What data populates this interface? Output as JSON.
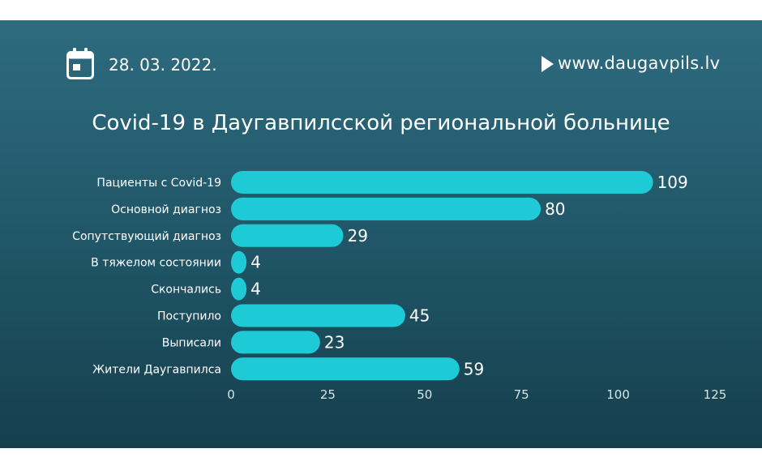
{
  "header": {
    "date": "28. 03. 2022.",
    "website": "www.daugavpils.lv"
  },
  "icons": {
    "calendar": "calendar-icon",
    "play": "play-icon"
  },
  "colors": {
    "background": "#1f5566",
    "bar": "#1ecad6",
    "text": "#ffffff",
    "tick_text": "#d6e3e8"
  },
  "chart_data": {
    "type": "bar",
    "orientation": "horizontal",
    "title": "Covid-19 в Даугавпилсской региональной больнице",
    "categories": [
      "Пациенты с Covid-19",
      "Основной диагноз",
      "Сопутствующий диагноз",
      "В тяжелом состоянии",
      "Скончались",
      "Поступило",
      "Выписали",
      "Жители Даугавпилса"
    ],
    "values": [
      109,
      80,
      29,
      4,
      4,
      45,
      23,
      59
    ],
    "xlim": [
      0,
      125
    ],
    "xticks": [
      0,
      25,
      50,
      75,
      100,
      125
    ],
    "grid": false,
    "legend": "none"
  }
}
